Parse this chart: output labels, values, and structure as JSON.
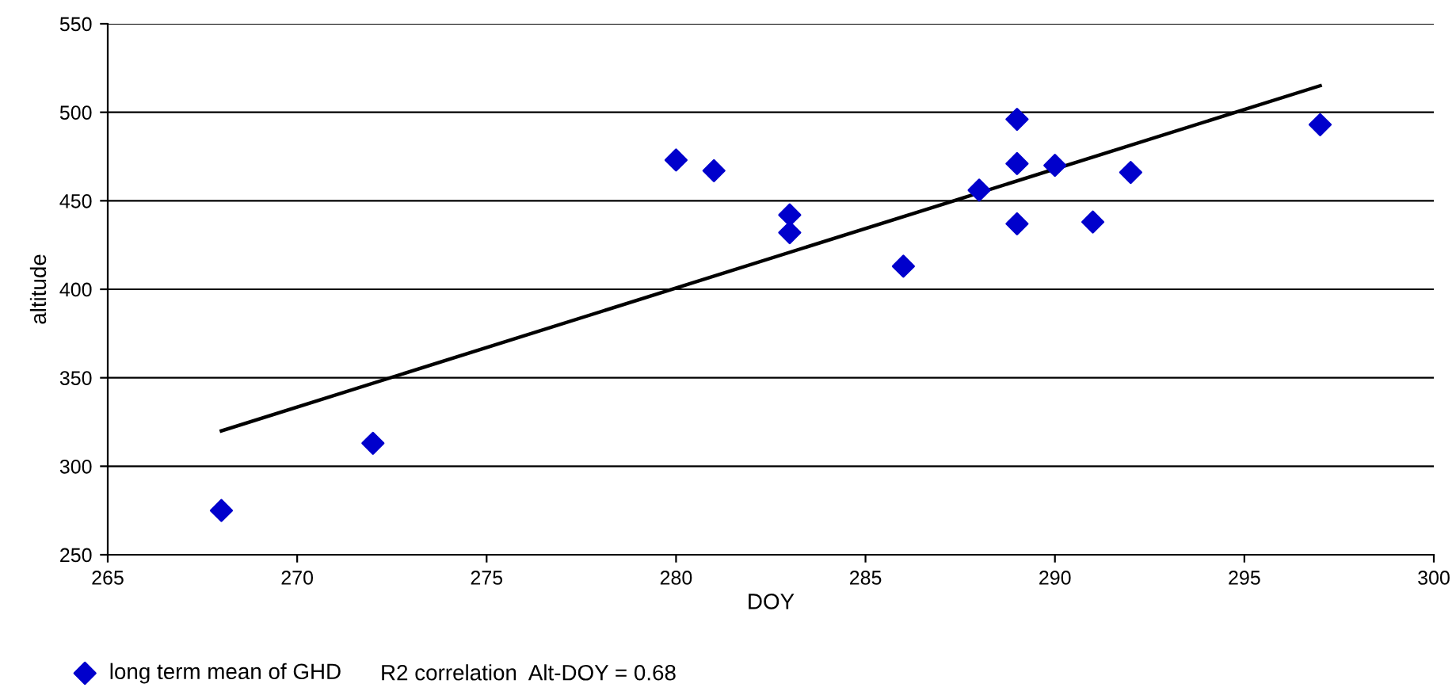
{
  "chart_data": {
    "type": "scatter",
    "xlabel": "DOY",
    "ylabel": "altitude",
    "xlim": [
      265,
      300
    ],
    "xticks": [
      265,
      270,
      275,
      280,
      285,
      290,
      295,
      300
    ],
    "ylim": [
      250,
      550
    ],
    "yticks": [
      250,
      300,
      350,
      400,
      450,
      500,
      550
    ],
    "grid": "y",
    "legend": "bottom",
    "marker": "diamond",
    "series": [
      {
        "name": "long term mean of GHD",
        "color": "#0000cc",
        "x": [
          268,
          272,
          280,
          281,
          283,
          283,
          286,
          288,
          289,
          289,
          289,
          290,
          291,
          292,
          297
        ],
        "values": [
          275,
          313,
          473,
          467,
          442,
          432,
          413,
          456,
          496,
          471,
          437,
          470,
          438,
          466,
          493
        ]
      },
      {
        "type": "line",
        "marker": "none",
        "color": "#000000",
        "x": [
          268,
          297
        ],
        "values": [
          320,
          515
        ]
      }
    ],
    "annotations": [
      "R2 correlation  Alt-DOY = 0.68"
    ]
  }
}
